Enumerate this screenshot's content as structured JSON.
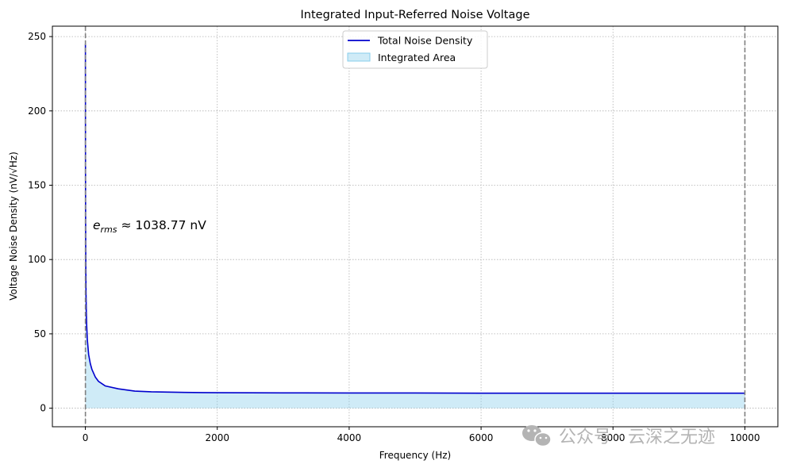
{
  "chart_data": {
    "type": "line",
    "title": "Integrated Input-Referred Noise Voltage",
    "xlabel": "Frequency (Hz)",
    "ylabel": "Voltage Noise Density (nV/√Hz)",
    "xlim": [
      -500,
      10500
    ],
    "ylim": [
      -12.5,
      257
    ],
    "xticks": [
      0,
      2000,
      4000,
      6000,
      8000,
      10000
    ],
    "xtick_labels": [
      "0",
      "2000",
      "4000",
      "6000",
      "8000",
      "10000"
    ],
    "yticks": [
      0,
      50,
      100,
      150,
      200,
      250
    ],
    "ytick_labels": [
      "0",
      "50",
      "100",
      "150",
      "200",
      "250"
    ],
    "grid": true,
    "legend_position": "top-center",
    "series": [
      {
        "name": "Total Noise Density",
        "color": "#0000cd",
        "x": [
          1,
          2,
          3,
          5,
          7,
          10,
          15,
          20,
          30,
          50,
          75,
          100,
          150,
          200,
          300,
          500,
          750,
          1000,
          1500,
          2000,
          3000,
          4000,
          5000,
          6000,
          7000,
          8000,
          9000,
          10000
        ],
        "y": [
          245,
          173,
          141,
          110,
          93,
          78,
          64,
          56,
          46,
          36,
          30,
          26,
          21,
          18,
          15,
          13,
          11.5,
          11,
          10.6,
          10.4,
          10.3,
          10.2,
          10.2,
          10.1,
          10.1,
          10.1,
          10.1,
          10.1
        ]
      }
    ],
    "fill": {
      "name": "Integrated Area",
      "color": "#87ceeb",
      "alpha": 0.4,
      "from_x": 1,
      "to_x": 10000
    },
    "vlines": [
      {
        "x": 1,
        "color": "#808080",
        "style": "dashed"
      },
      {
        "x": 10000,
        "color": "#808080",
        "style": "dashed"
      }
    ],
    "annotation": {
      "symbol": "e",
      "subscript": "rms",
      "text": " ≈ 1038.77 nV",
      "x": 100,
      "y": 120
    }
  },
  "watermark": {
    "text": "公众号 · 云深之无迹",
    "icon": "wechat-icon",
    "color": "#b4b4b4"
  }
}
